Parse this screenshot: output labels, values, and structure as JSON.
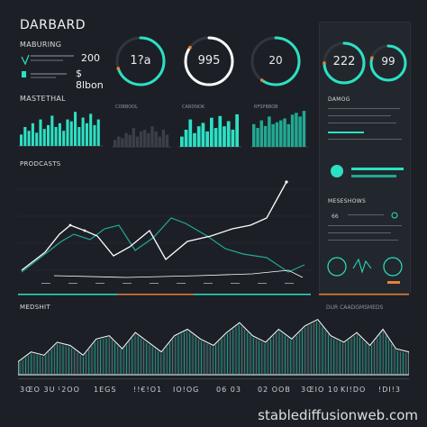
{
  "header": {
    "title": "DARBARD",
    "section_label": "MABURING"
  },
  "kpi": {
    "top_value": "200",
    "bottom_value": "$ 8lbon"
  },
  "gauges": [
    {
      "value": "1?a",
      "fraction": 0.7,
      "color": "#2de0c4"
    },
    {
      "value": "995",
      "fraction": 0.85,
      "color": "#ffffff"
    },
    {
      "value": "20",
      "fraction": 0.6,
      "color": "#2de0c4"
    },
    {
      "value": "222",
      "fraction": 0.75,
      "color": "#2de0c4"
    },
    {
      "value": "99",
      "fraction": 0.8,
      "color": "#2de0c4"
    }
  ],
  "sections": {
    "mastethal": "MASTETHAL",
    "panel_b": "COBBOOL",
    "panel_c": "CARDNOK",
    "panel_d": "RFSPBBOB",
    "products": "PRODCASTS",
    "damog": "DAMOG",
    "medshit": "MEDSHIT",
    "medshit_right": "DUR CAADGMSMEDS",
    "meseshows": "MESESHOWS",
    "right_small": "66"
  },
  "colors": {
    "accent": "#2de0c4",
    "orange": "#e8813a",
    "bg": "#1c2026"
  },
  "footer": [
    "3ŒO 3U",
    "¹2OO",
    "1EGS",
    "!!€!O1",
    "IO!OG",
    "06 03",
    "02 OOB",
    "3ŒIO 10",
    "KI!DO",
    "!DI!3"
  ],
  "watermark": "stablediffusionweb.com"
}
